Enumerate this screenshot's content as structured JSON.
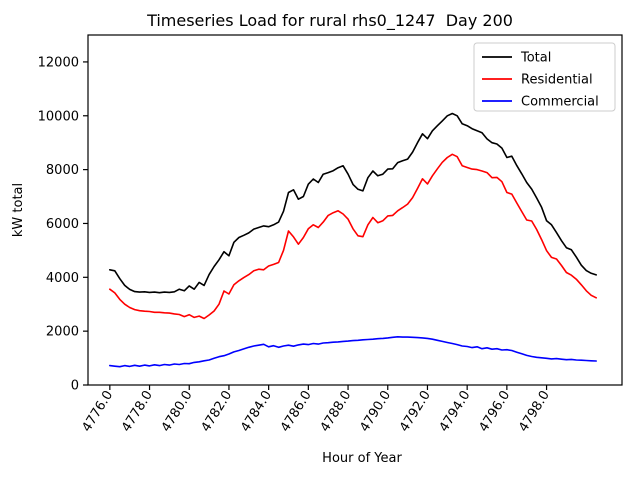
{
  "chart_data": {
    "type": "line",
    "title": "Timeseries Load for rural rhs0_1247  Day 200",
    "xlabel": "Hour of Year",
    "ylabel": "kW total",
    "xlim": [
      4774.9,
      4801.8
    ],
    "ylim": [
      0,
      13000
    ],
    "grid": false,
    "legend_position": "upper right",
    "ytick_values": [
      0,
      2000,
      4000,
      6000,
      8000,
      10000,
      12000
    ],
    "ytick_labels": [
      "0",
      "2000",
      "4000",
      "6000",
      "8000",
      "10000",
      "12000"
    ],
    "xtick_values": [
      4776,
      4778,
      4780,
      4782,
      4784,
      4786,
      4788,
      4790,
      4792,
      4794,
      4796,
      4798
    ],
    "xtick_labels": [
      "4776.0",
      "4778.0",
      "4780.0",
      "4782.0",
      "4784.0",
      "4786.0",
      "4788.0",
      "4790.0",
      "4792.0",
      "4794.0",
      "4796.0",
      "4798.0"
    ],
    "x": [
      4776.0,
      4776.25,
      4776.5,
      4776.75,
      4777.0,
      4777.25,
      4777.5,
      4777.75,
      4778.0,
      4778.25,
      4778.5,
      4778.75,
      4779.0,
      4779.25,
      4779.5,
      4779.75,
      4780.0,
      4780.25,
      4780.5,
      4780.75,
      4781.0,
      4781.25,
      4781.5,
      4781.75,
      4782.0,
      4782.25,
      4782.5,
      4782.75,
      4783.0,
      4783.25,
      4783.5,
      4783.75,
      4784.0,
      4784.25,
      4784.5,
      4784.75,
      4785.0,
      4785.25,
      4785.5,
      4785.75,
      4786.0,
      4786.25,
      4786.5,
      4786.75,
      4787.0,
      4787.25,
      4787.5,
      4787.75,
      4788.0,
      4788.25,
      4788.5,
      4788.75,
      4789.0,
      4789.25,
      4789.5,
      4789.75,
      4790.0,
      4790.25,
      4790.5,
      4790.75,
      4791.0,
      4791.25,
      4791.5,
      4791.75,
      4792.0,
      4792.25,
      4792.5,
      4792.75,
      4793.0,
      4793.25,
      4793.5,
      4793.75,
      4794.0,
      4794.25,
      4794.5,
      4794.75,
      4795.0,
      4795.25,
      4795.5,
      4795.75,
      4796.0,
      4796.25,
      4796.5,
      4796.75,
      4797.0,
      4797.25,
      4797.5,
      4797.75,
      4798.0,
      4798.25,
      4798.5,
      4798.75,
      4799.0,
      4799.25,
      4799.5,
      4799.75,
      4800.0,
      4800.25,
      4800.5
    ],
    "series": [
      {
        "name": "Total",
        "color": "#000000",
        "values": [
          4280,
          4240,
          3950,
          3700,
          3550,
          3470,
          3450,
          3460,
          3440,
          3450,
          3430,
          3450,
          3440,
          3460,
          3560,
          3500,
          3680,
          3560,
          3810,
          3700,
          4100,
          4400,
          4650,
          4950,
          4800,
          5300,
          5480,
          5560,
          5650,
          5790,
          5850,
          5910,
          5880,
          5950,
          6050,
          6450,
          7150,
          7250,
          6900,
          7000,
          7460,
          7650,
          7520,
          7830,
          7890,
          7960,
          8070,
          8140,
          7830,
          7450,
          7270,
          7210,
          7700,
          7950,
          7770,
          7830,
          8020,
          8030,
          8260,
          8330,
          8390,
          8650,
          9000,
          9330,
          9150,
          9440,
          9630,
          9810,
          10000,
          10085,
          10000,
          9700,
          9630,
          9520,
          9440,
          9370,
          9140,
          9000,
          8950,
          8800,
          8450,
          8500,
          8150,
          7840,
          7520,
          7275,
          6950,
          6600,
          6100,
          5950,
          5660,
          5360,
          5100,
          5020,
          4750,
          4450,
          4250,
          4150,
          4090
        ]
      },
      {
        "name": "Residential",
        "color": "#ff0000",
        "values": [
          3560,
          3420,
          3180,
          3000,
          2880,
          2800,
          2760,
          2740,
          2730,
          2700,
          2700,
          2680,
          2670,
          2640,
          2620,
          2540,
          2610,
          2510,
          2560,
          2470,
          2600,
          2750,
          3000,
          3490,
          3380,
          3720,
          3870,
          3990,
          4100,
          4240,
          4300,
          4280,
          4420,
          4480,
          4550,
          5000,
          5720,
          5500,
          5230,
          5480,
          5800,
          5950,
          5850,
          6050,
          6300,
          6400,
          6470,
          6350,
          6160,
          5800,
          5540,
          5510,
          5950,
          6220,
          6030,
          6100,
          6280,
          6300,
          6470,
          6590,
          6720,
          6960,
          7300,
          7660,
          7470,
          7770,
          8030,
          8270,
          8450,
          8570,
          8480,
          8140,
          8080,
          8020,
          8000,
          7950,
          7890,
          7700,
          7710,
          7550,
          7150,
          7090,
          6760,
          6440,
          6130,
          6090,
          5780,
          5400,
          4990,
          4740,
          4680,
          4440,
          4180,
          4080,
          3930,
          3720,
          3500,
          3330,
          3240
        ]
      },
      {
        "name": "Commercial",
        "color": "#0000ff",
        "values": [
          720,
          700,
          680,
          720,
          690,
          730,
          700,
          740,
          710,
          750,
          720,
          760,
          740,
          780,
          760,
          800,
          790,
          840,
          860,
          900,
          930,
          990,
          1050,
          1090,
          1150,
          1230,
          1280,
          1340,
          1400,
          1450,
          1480,
          1510,
          1420,
          1460,
          1400,
          1450,
          1480,
          1440,
          1490,
          1520,
          1500,
          1540,
          1520,
          1560,
          1570,
          1590,
          1600,
          1620,
          1630,
          1650,
          1660,
          1680,
          1690,
          1700,
          1720,
          1730,
          1750,
          1770,
          1790,
          1780,
          1780,
          1770,
          1760,
          1750,
          1730,
          1700,
          1660,
          1620,
          1580,
          1540,
          1500,
          1450,
          1430,
          1390,
          1420,
          1350,
          1380,
          1330,
          1350,
          1300,
          1310,
          1280,
          1220,
          1160,
          1100,
          1060,
          1030,
          1010,
          990,
          970,
          980,
          960,
          940,
          950,
          930,
          920,
          910,
          900,
          890
        ]
      }
    ]
  }
}
